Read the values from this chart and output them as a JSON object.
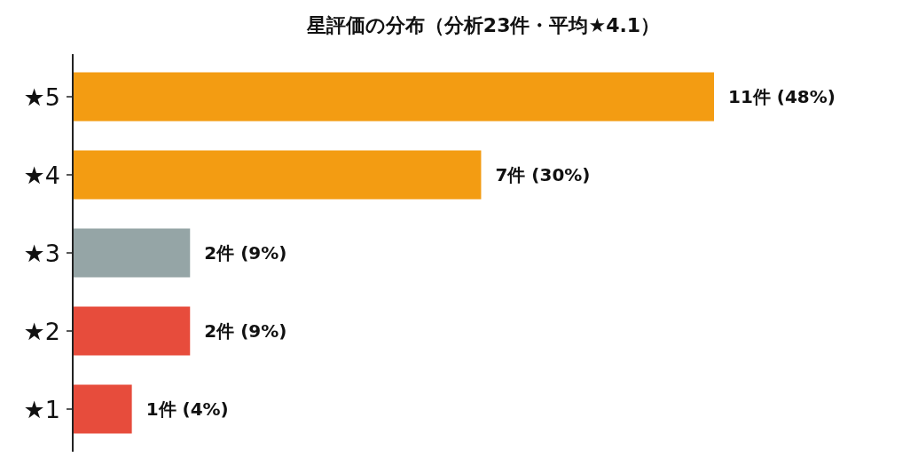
{
  "chart_data": {
    "type": "bar",
    "orientation": "horizontal",
    "title": "星評価の分布（分析23件・平均★4.1）",
    "categories": [
      "★5",
      "★4",
      "★3",
      "★2",
      "★1"
    ],
    "values": [
      11,
      7,
      2,
      2,
      1
    ],
    "colors": [
      "#f39c12",
      "#f39c12",
      "#95a5a6",
      "#e74c3c",
      "#e74c3c"
    ],
    "value_labels": [
      "11件 (48%)",
      "7件 (30%)",
      "2件 (9%)",
      "2件 (9%)",
      "1件 (4%)"
    ]
  }
}
